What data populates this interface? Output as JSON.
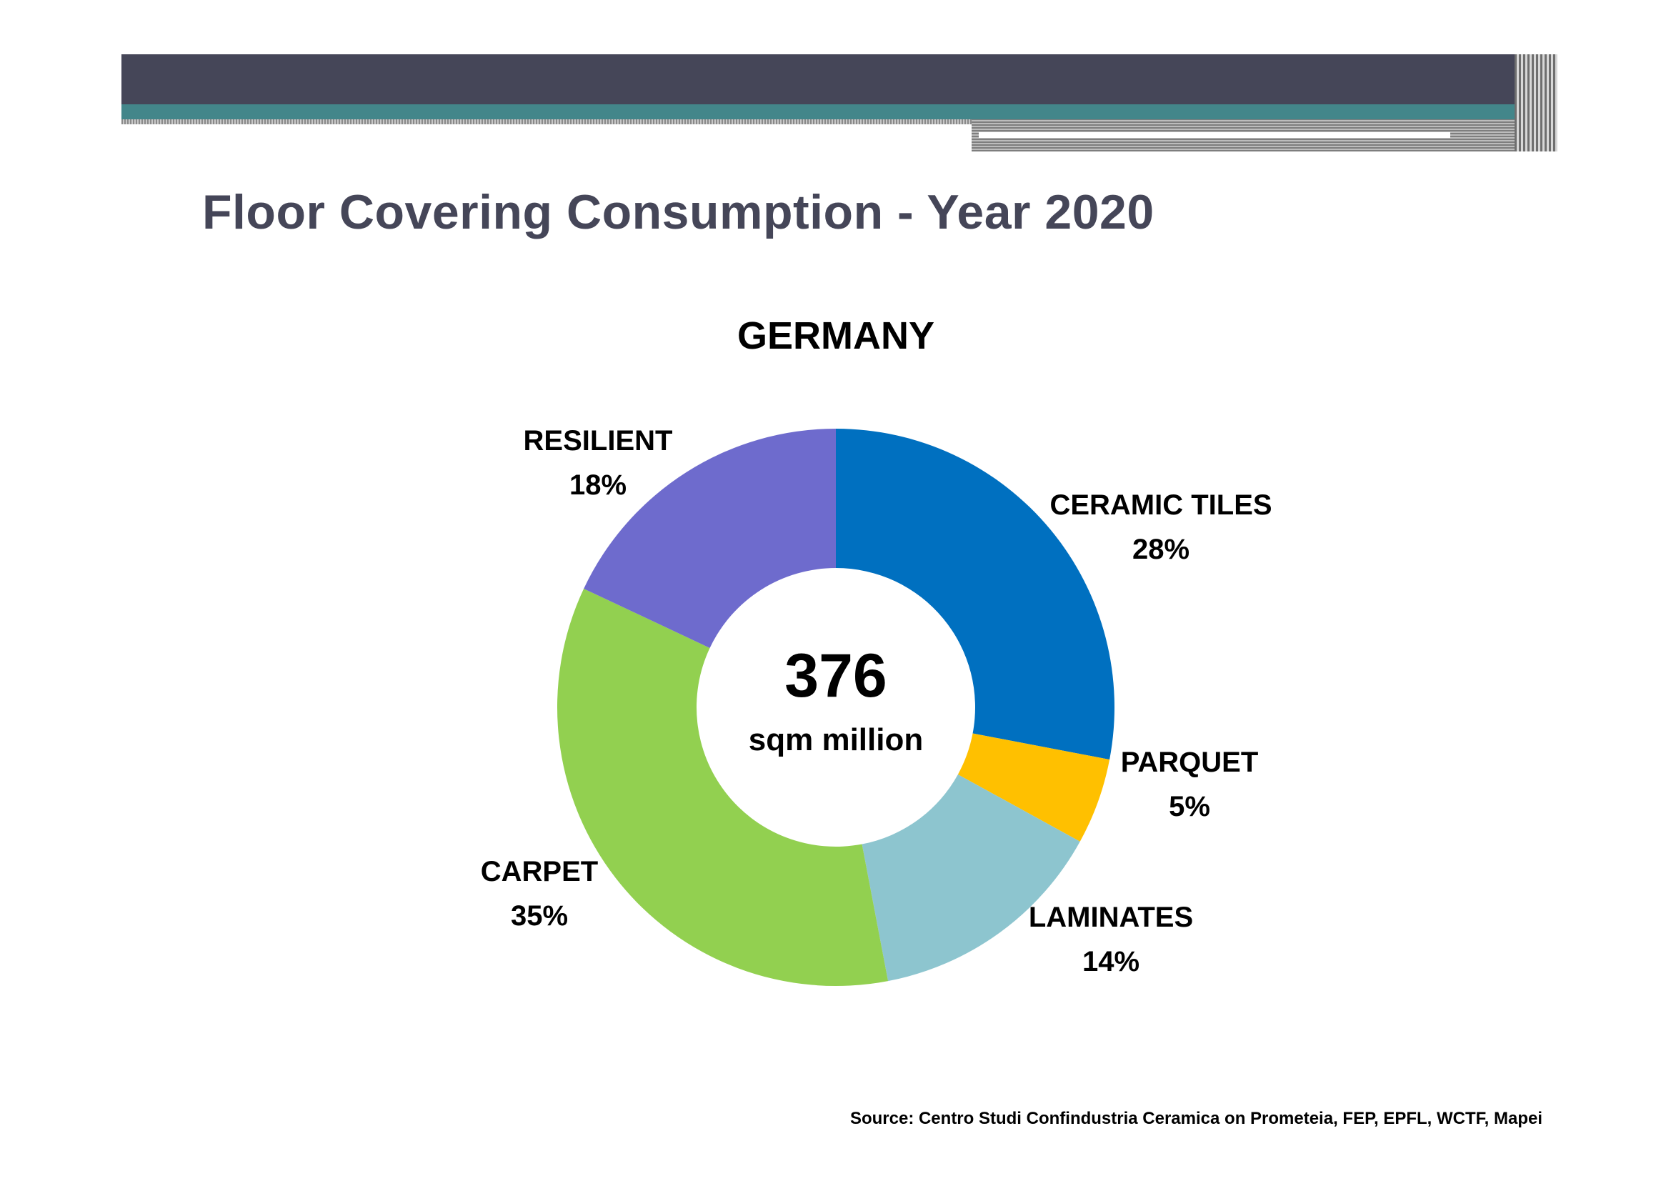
{
  "page_title": "Floor Covering Consumption - Year 2020",
  "source": "Source: Centro Studi Confindustria Ceramica on Prometeia, FEP, EPFL, WCTF, Mapei",
  "chart_data": {
    "type": "pie",
    "variant": "donut",
    "title": "GERMANY",
    "center_value": "376",
    "center_unit": "sqm million",
    "slices": [
      {
        "label": "CERAMIC TILES",
        "pct_label": "28%",
        "value": 28,
        "color": "#0070c0"
      },
      {
        "label": "PARQUET",
        "pct_label": "5%",
        "value": 5,
        "color": "#ffc000"
      },
      {
        "label": "LAMINATES",
        "pct_label": "14%",
        "value": 14,
        "color": "#8dc5cf"
      },
      {
        "label": "CARPET",
        "pct_label": "35%",
        "value": 35,
        "color": "#92d050"
      },
      {
        "label": "RESILIENT",
        "pct_label": "18%",
        "value": 18,
        "color": "#6e6bcd"
      }
    ]
  }
}
